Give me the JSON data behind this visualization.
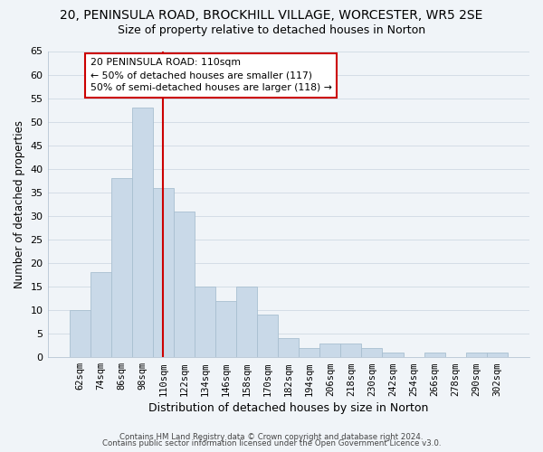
{
  "title": "20, PENINSULA ROAD, BROCKHILL VILLAGE, WORCESTER, WR5 2SE",
  "subtitle": "Size of property relative to detached houses in Norton",
  "xlabel": "Distribution of detached houses by size in Norton",
  "ylabel": "Number of detached properties",
  "bar_labels": [
    "62sqm",
    "74sqm",
    "86sqm",
    "98sqm",
    "110sqm",
    "122sqm",
    "134sqm",
    "146sqm",
    "158sqm",
    "170sqm",
    "182sqm",
    "194sqm",
    "206sqm",
    "218sqm",
    "230sqm",
    "242sqm",
    "254sqm",
    "266sqm",
    "278sqm",
    "290sqm",
    "302sqm"
  ],
  "bar_values": [
    10,
    18,
    38,
    53,
    36,
    31,
    15,
    12,
    15,
    9,
    4,
    2,
    3,
    3,
    2,
    1,
    0,
    1,
    0,
    1,
    1
  ],
  "bar_color": "#c9d9e8",
  "bar_edge_color": "#a8bfd0",
  "vline_x_index": 4,
  "vline_color": "#cc0000",
  "annotation_line1": "20 PENINSULA ROAD: 110sqm",
  "annotation_line2": "← 50% of detached houses are smaller (117)",
  "annotation_line3": "50% of semi-detached houses are larger (118) →",
  "annotation_box_color": "#ffffff",
  "annotation_box_edge": "#cc0000",
  "ylim": [
    0,
    65
  ],
  "yticks": [
    0,
    5,
    10,
    15,
    20,
    25,
    30,
    35,
    40,
    45,
    50,
    55,
    60,
    65
  ],
  "grid_color": "#d4dde6",
  "footer1": "Contains HM Land Registry data © Crown copyright and database right 2024.",
  "footer2": "Contains public sector information licensed under the Open Government Licence v3.0.",
  "bg_color": "#f0f4f8"
}
